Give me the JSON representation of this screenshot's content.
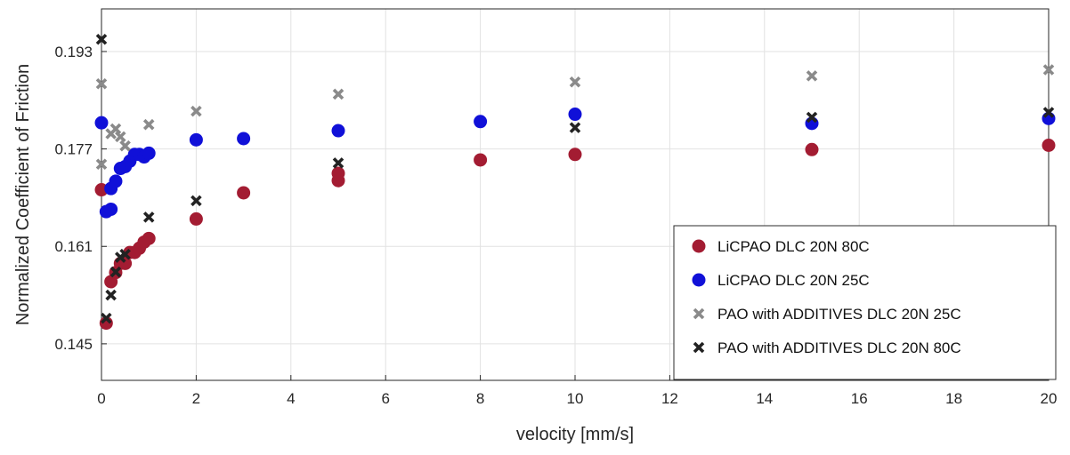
{
  "chart_data": {
    "type": "scatter",
    "title": "",
    "xlabel": "velocity [mm/s]",
    "ylabel": "Normalized Coefficient of Friction",
    "xlim": [
      0,
      20
    ],
    "ylim": [
      0.139,
      0.2
    ],
    "x_ticks": [
      "0",
      "2",
      "4",
      "6",
      "8",
      "10",
      "12",
      "14",
      "16",
      "18",
      "20"
    ],
    "y_ticks": [
      "0.145",
      "0.161",
      "0.177",
      "0.193"
    ],
    "grid": true,
    "legend_position": "bottom-right",
    "series": [
      {
        "name": "LiCPAO DLC 20N  80C",
        "marker": "circle",
        "color": "#a31c32",
        "points": [
          [
            0,
            0.1703
          ],
          [
            0.1,
            0.1484
          ],
          [
            0.2,
            0.1552
          ],
          [
            0.3,
            0.1567
          ],
          [
            0.4,
            0.1582
          ],
          [
            0.5,
            0.1582
          ],
          [
            0.6,
            0.16
          ],
          [
            0.7,
            0.16
          ],
          [
            0.8,
            0.1607
          ],
          [
            0.9,
            0.1617
          ],
          [
            1,
            0.1623
          ],
          [
            2,
            0.1655
          ],
          [
            3,
            0.1698
          ],
          [
            5,
            0.173
          ],
          [
            5,
            0.1718
          ],
          [
            8,
            0.1752
          ],
          [
            10,
            0.1761
          ],
          [
            15,
            0.1769
          ],
          [
            20,
            0.1776
          ]
        ]
      },
      {
        "name": "LiCPAO DLC 20N  25C",
        "marker": "circle",
        "color": "#1010d8",
        "points": [
          [
            0,
            0.1813
          ],
          [
            0.1,
            0.1667
          ],
          [
            0.2,
            0.1671
          ],
          [
            0.2,
            0.1705
          ],
          [
            0.3,
            0.1717
          ],
          [
            0.4,
            0.1738
          ],
          [
            0.5,
            0.1741
          ],
          [
            0.6,
            0.175
          ],
          [
            0.7,
            0.1761
          ],
          [
            0.8,
            0.1761
          ],
          [
            0.9,
            0.1757
          ],
          [
            1,
            0.1763
          ],
          [
            2,
            0.1785
          ],
          [
            3,
            0.1787
          ],
          [
            5,
            0.18
          ],
          [
            8,
            0.1815
          ],
          [
            10,
            0.1827
          ],
          [
            15,
            0.1812
          ],
          [
            20,
            0.182
          ]
        ]
      },
      {
        "name": "PAO with ADDITIVES DLC 20N  25C",
        "marker": "x",
        "color": "#8a8a8a",
        "points": [
          [
            0,
            0.1877
          ],
          [
            0,
            0.1745
          ],
          [
            0.2,
            0.1795
          ],
          [
            0.3,
            0.1803
          ],
          [
            0.4,
            0.179
          ],
          [
            0.5,
            0.1775
          ],
          [
            1,
            0.181
          ],
          [
            2,
            0.1832
          ],
          [
            5,
            0.186
          ],
          [
            10,
            0.188
          ],
          [
            15,
            0.189
          ],
          [
            20,
            0.19
          ]
        ]
      },
      {
        "name": "PAO with ADDITIVES DLC 20N  80C",
        "marker": "x",
        "color": "#222222",
        "points": [
          [
            0,
            0.195
          ],
          [
            0.1,
            0.1492
          ],
          [
            0.2,
            0.153
          ],
          [
            0.3,
            0.1568
          ],
          [
            0.4,
            0.1592
          ],
          [
            0.5,
            0.1597
          ],
          [
            1,
            0.1658
          ],
          [
            2,
            0.1685
          ],
          [
            5,
            0.1747
          ],
          [
            10,
            0.1805
          ],
          [
            15,
            0.1822
          ],
          [
            20,
            0.183
          ]
        ]
      }
    ]
  }
}
